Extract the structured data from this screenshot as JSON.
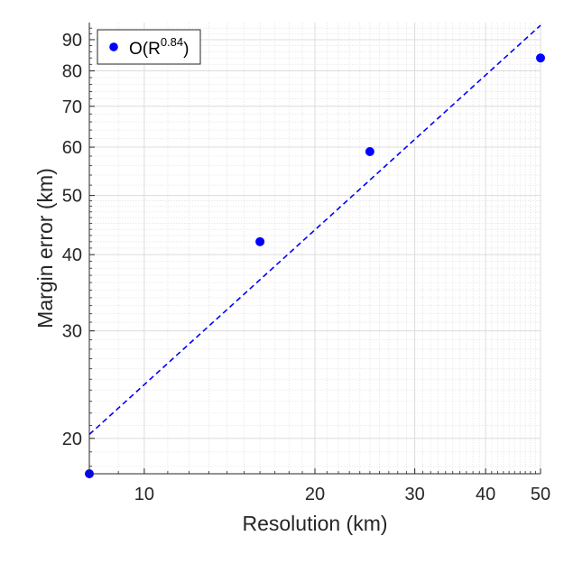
{
  "chart_data": {
    "type": "scatter",
    "title": "",
    "xlabel": "Resolution (km)",
    "ylabel": "Margin error (km)",
    "xscale": "log",
    "yscale": "log",
    "xlim": [
      8,
      50
    ],
    "ylim": [
      17.5,
      96
    ],
    "xticks": [
      10,
      20,
      30,
      40,
      50
    ],
    "yticks": [
      20,
      30,
      40,
      50,
      60,
      70,
      80,
      90
    ],
    "grid": true,
    "minor_grid": true,
    "legend": {
      "position": "top-left",
      "entries": [
        "O(R^0.84)"
      ]
    },
    "series": [
      {
        "name": "O(R^0.84)",
        "kind": "scatter",
        "color": "#0000ff",
        "x": [
          8,
          16,
          25,
          50
        ],
        "y": [
          17.5,
          42,
          59,
          84
        ]
      },
      {
        "name": "",
        "kind": "line",
        "style": "dashed",
        "color": "#0000ff",
        "exponent": 0.84,
        "x": [
          8,
          50
        ],
        "y": [
          20.3,
          95
        ]
      }
    ],
    "legend_label": {
      "base": "O(R",
      "sup": "0.84",
      "close": ")"
    }
  }
}
